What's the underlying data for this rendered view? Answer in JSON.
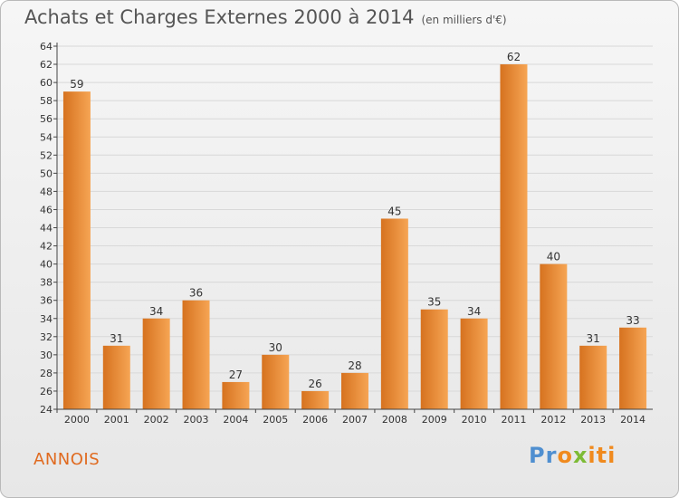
{
  "header": {
    "title": "Achats et Charges Externes 2000 à 2014",
    "subtitle": "(en milliers d'€)"
  },
  "footer": {
    "place": "ANNOIS",
    "logo": "Proxiti",
    "logo_parts": [
      "Pr",
      "o",
      "x",
      "iti"
    ]
  },
  "colors": {
    "bar_light": "#f6a554",
    "bar_dark": "#d6721f",
    "grid": "#d8d8d8",
    "axis": "#444444",
    "place": "#e06a1f"
  },
  "chart_data": {
    "type": "bar",
    "categories": [
      "2000",
      "2001",
      "2002",
      "2003",
      "2004",
      "2005",
      "2006",
      "2007",
      "2008",
      "2009",
      "2010",
      "2011",
      "2012",
      "2013",
      "2014"
    ],
    "values": [
      59,
      31,
      34,
      36,
      27,
      30,
      26,
      28,
      45,
      35,
      34,
      62,
      40,
      31,
      33
    ],
    "title": "Achats et Charges Externes 2000 à 2014",
    "ylim": [
      24,
      64
    ],
    "yticks": [
      24,
      26,
      28,
      30,
      32,
      34,
      36,
      38,
      40,
      42,
      44,
      46,
      48,
      50,
      52,
      54,
      56,
      58,
      60,
      62,
      64
    ],
    "grid": true,
    "data_labels": true
  }
}
